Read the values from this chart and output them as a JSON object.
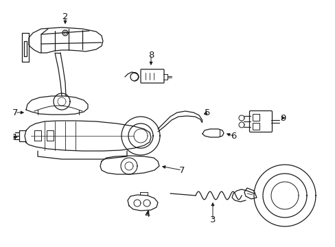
{
  "bg_color": "#ffffff",
  "line_color": "#1a1a1a",
  "fig_width": 4.89,
  "fig_height": 3.6,
  "dpi": 100,
  "xlim": [
    0,
    489
  ],
  "ylim": [
    0,
    360
  ]
}
